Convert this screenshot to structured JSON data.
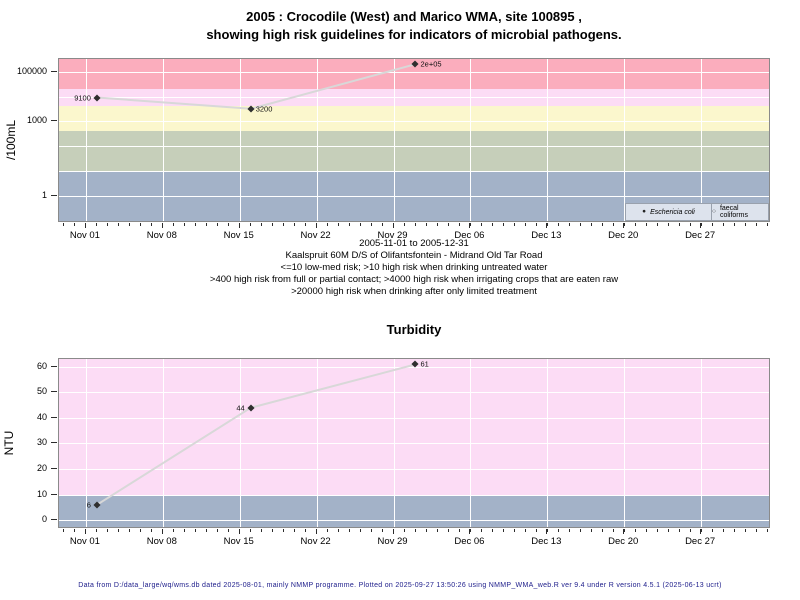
{
  "page": {
    "title_line1": "2005 : Crocodile (West) and Marico WMA, site 100895 ,",
    "title_line2": "showing high risk guidelines for indicators of microbial pathogens.",
    "footer": "Data from D:/data_large/wq/wms.db dated 2025-08-01, mainly NMMP programme. Plotted on 2025-09-27 13:50:26 using NMMP_WMA_web.R ver 9.4 under R version 4.5.1 (2025-06-13 ucrt)",
    "footer_color": "#20208c"
  },
  "chart_data": [
    {
      "type": "line",
      "name": "microbial-pathogen-indicators",
      "ylabel": "/100mL",
      "yscale": "log",
      "ylim": [
        0.08,
        325000
      ],
      "yticks": [
        {
          "v": 1,
          "label": "1"
        },
        {
          "v": 1000,
          "label": "1000"
        },
        {
          "v": 100000,
          "label": "100000"
        }
      ],
      "grid_values": [
        0.1,
        1,
        10,
        100,
        1000,
        10000,
        100000
      ],
      "xlim_days": [
        -2.45,
        62.36
      ],
      "xticks": [
        {
          "day": 0,
          "label": "Nov 01"
        },
        {
          "day": 7,
          "label": "Nov 08"
        },
        {
          "day": 14,
          "label": "Nov 15"
        },
        {
          "day": 21,
          "label": "Nov 22"
        },
        {
          "day": 28,
          "label": "Nov 29"
        },
        {
          "day": 35,
          "label": "Dec 06"
        },
        {
          "day": 42,
          "label": "Dec 13"
        },
        {
          "day": 49,
          "label": "Dec 20"
        },
        {
          "day": 56,
          "label": "Dec 27"
        }
      ],
      "bands": [
        {
          "from": 20000,
          "to": 325000,
          "color": "#fbadbd",
          "meaning": ">20000 high risk when drinking after only limited treatment"
        },
        {
          "from": 4000,
          "to": 20000,
          "color": "#fcdcf5",
          "meaning": ">4000 high risk when irrigating crops that are eaten raw"
        },
        {
          "from": 400,
          "to": 4000,
          "color": "#fbf7cd",
          "meaning": ">400 high risk from full or partial contact"
        },
        {
          "from": 10,
          "to": 400,
          "color": "#c6cfba",
          "meaning": ">10 high risk when drinking untreated water"
        },
        {
          "from": 0.08,
          "to": 10,
          "color": "#a3b2c8",
          "meaning": "<=10 low-med risk"
        }
      ],
      "series": [
        {
          "name": "Eschericia coli",
          "marker": "filled-diamond",
          "line_color": "#d8d8d8",
          "points": [
            {
              "day": 1,
              "value": 9100,
              "label": "9100",
              "label_side": "left"
            },
            {
              "day": 15,
              "value": 3200,
              "label": "3200",
              "label_side": "right"
            },
            {
              "day": 30,
              "value": 200000,
              "label": "2e+05",
              "label_side": "right"
            }
          ]
        },
        {
          "name": "faecal coliforms",
          "marker": "open-circle",
          "line_color": "#d8d8d8",
          "points": []
        }
      ],
      "legend": [
        {
          "marker": "filled-circle",
          "label": "Eschericia coli",
          "italic": true
        },
        {
          "marker": "open-circle",
          "label": "faecal coliforms",
          "italic": false
        }
      ],
      "annotations": [
        "2005-11-01 to 2005-12-31",
        "Kaalspruit 60M D/S of Olifantsfontein - Midrand Old Tar Road",
        "<=10 low-med risk; >10 high risk when drinking untreated water",
        ">400 high risk from full or partial contact; >4000 high risk when irrigating crops that are eaten raw",
        ">20000 high risk when drinking after only limited treatment"
      ]
    },
    {
      "type": "line",
      "name": "turbidity",
      "title": "Turbidity",
      "ylabel": "NTU",
      "yscale": "linear",
      "ylim": [
        -3.5,
        63.1
      ],
      "yticks": [
        {
          "v": 0,
          "label": "0"
        },
        {
          "v": 10,
          "label": "10"
        },
        {
          "v": 20,
          "label": "20"
        },
        {
          "v": 30,
          "label": "30"
        },
        {
          "v": 40,
          "label": "40"
        },
        {
          "v": 50,
          "label": "50"
        },
        {
          "v": 60,
          "label": "60"
        }
      ],
      "xlim_days": [
        -2.45,
        62.36
      ],
      "xticks": [
        {
          "day": 0,
          "label": "Nov 01"
        },
        {
          "day": 7,
          "label": "Nov 08"
        },
        {
          "day": 14,
          "label": "Nov 15"
        },
        {
          "day": 21,
          "label": "Nov 22"
        },
        {
          "day": 28,
          "label": "Nov 29"
        },
        {
          "day": 35,
          "label": "Dec 06"
        },
        {
          "day": 42,
          "label": "Dec 13"
        },
        {
          "day": 49,
          "label": "Dec 20"
        },
        {
          "day": 56,
          "label": "Dec 27"
        }
      ],
      "bands": [
        {
          "from": 10,
          "to": 63.1,
          "color": "#fcdcf5",
          "meaning": ">10 high risk"
        },
        {
          "from": -3.5,
          "to": 10,
          "color": "#a3b2c8",
          "meaning": "<=10 low-med risk"
        }
      ],
      "series": [
        {
          "name": "Turbidity",
          "marker": "filled-diamond",
          "line_color": "#d8d8d8",
          "points": [
            {
              "day": 1,
              "value": 6,
              "label": "6",
              "label_side": "left"
            },
            {
              "day": 15,
              "value": 44,
              "label": "44",
              "label_side": "left"
            },
            {
              "day": 30,
              "value": 61,
              "label": "61",
              "label_side": "right"
            }
          ]
        }
      ]
    }
  ]
}
